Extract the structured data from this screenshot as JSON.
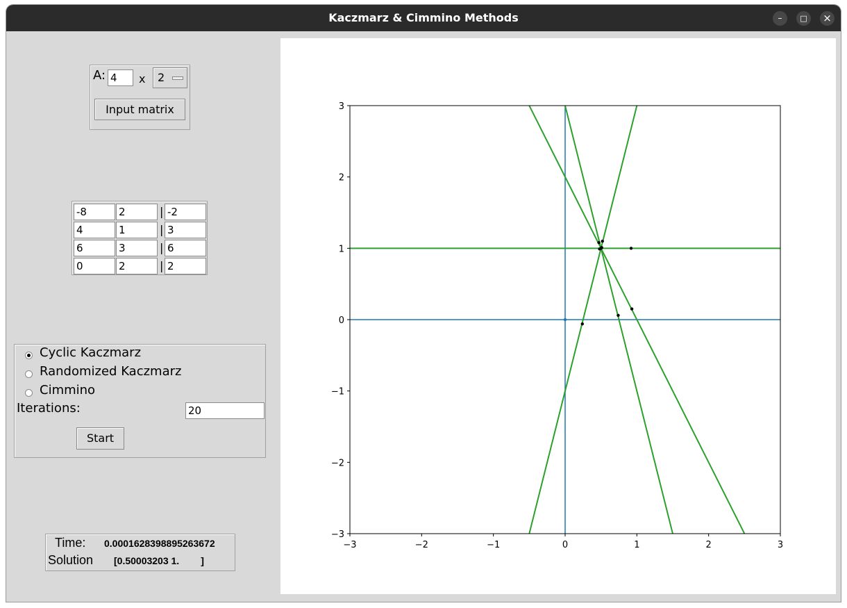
{
  "window": {
    "title": "Kaczmarz & Cimmino Methods",
    "controls": {
      "minimize": "–",
      "maximize": "□",
      "close": "×"
    }
  },
  "size_panel": {
    "a_label": "A:",
    "rows_value": "4",
    "x_label": "x",
    "cols_value": "2",
    "input_button": "Input matrix"
  },
  "matrix": {
    "separator": "|",
    "rows": [
      {
        "a1": "-8",
        "a2": "2",
        "b": "-2"
      },
      {
        "a1": "4",
        "a2": "1",
        "b": "3"
      },
      {
        "a1": "6",
        "a2": "3",
        "b": "6"
      },
      {
        "a1": "0",
        "a2": "2",
        "b": "2"
      }
    ]
  },
  "methods": {
    "options": [
      "Cyclic Kaczmarz",
      "Randomized Kaczmarz",
      "Cimmino"
    ],
    "selected": 0,
    "iterations_label": "Iterations:",
    "iterations_value": "20",
    "start_button": "Start"
  },
  "result": {
    "time_label": "Time:",
    "time_value": "0.0001628398895263672",
    "solution_label": "Solution",
    "solution_value": "[0.50003203 1.        ]"
  },
  "chart_data": {
    "type": "line",
    "xlim": [
      -3,
      3
    ],
    "ylim": [
      -3,
      3
    ],
    "xticks": [
      -3,
      -2,
      -1,
      0,
      1,
      2,
      3
    ],
    "yticks": [
      -3,
      -2,
      -1,
      0,
      1,
      2,
      3
    ],
    "xtick_labels": [
      "−3",
      "−2",
      "−1",
      "0",
      "1",
      "2",
      "3"
    ],
    "ytick_labels": [
      "−3",
      "−2",
      "−1",
      "0",
      "1",
      "2",
      "3"
    ],
    "axis_color": "#1f77b4",
    "line_color": "#2ca02c",
    "point_color": "#000000",
    "axis_lines": [
      {
        "kind": "vertical",
        "x": 0
      },
      {
        "kind": "horizontal",
        "y": 0
      }
    ],
    "constraint_lines": [
      {
        "a1": -8,
        "a2": 2,
        "b": -2
      },
      {
        "a1": 4,
        "a2": 1,
        "b": 3
      },
      {
        "a1": 6,
        "a2": 3,
        "b": 6
      },
      {
        "a1": 0,
        "a2": 2,
        "b": 2
      }
    ],
    "points": [
      {
        "x": 0,
        "y": 0
      },
      {
        "x": 0.24,
        "y": -0.06
      },
      {
        "x": 0.74,
        "y": 0.06
      },
      {
        "x": 0.93,
        "y": 0.15
      },
      {
        "x": 0.92,
        "y": 1.0
      },
      {
        "x": 0.47,
        "y": 1.08
      },
      {
        "x": 0.52,
        "y": 1.1
      },
      {
        "x": 0.48,
        "y": 0.99
      },
      {
        "x": 0.5,
        "y": 1.0
      },
      {
        "x": 0.51,
        "y": 1.01
      }
    ]
  }
}
